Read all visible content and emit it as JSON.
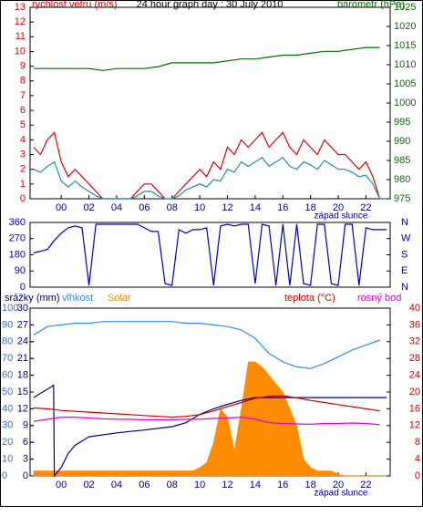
{
  "chart_data": [
    {
      "type": "line",
      "title": "24 hour graph day : 30 July 2010",
      "ylabel": "rychlost vetru (m/s)",
      "y2label": "barometr (hPa)",
      "annotation": "západ slunce",
      "xlim": [
        -2.25,
        23.75
      ],
      "xticks": [
        {
          "value": 0,
          "label": "00"
        },
        {
          "value": 2,
          "label": "02"
        },
        {
          "value": 4,
          "label": "04"
        },
        {
          "value": 6,
          "label": "06"
        },
        {
          "value": 8,
          "label": "08"
        },
        10,
        12,
        14,
        16,
        18,
        20,
        22
      ],
      "ylim": [
        0,
        13
      ],
      "yticks": [
        0,
        1,
        2,
        3,
        4,
        5,
        6,
        7,
        8,
        9,
        10,
        11,
        12,
        13
      ],
      "ycolor": "#e00000",
      "y2lim": [
        975,
        1025
      ],
      "y2ticks": [
        975,
        980,
        985,
        990,
        995,
        1000,
        1005,
        1010,
        1015,
        1020,
        1025
      ],
      "y2color": "#007000",
      "grid": false,
      "series": [
        {
          "color": "#e00000",
          "x": [
            -2,
            -1.5,
            -1,
            -0.5,
            0,
            0.5,
            1,
            1.5,
            2,
            2.5,
            3,
            3.5,
            4,
            4.5,
            5,
            5.5,
            6,
            6.5,
            7,
            7.5,
            8,
            8.5,
            9,
            9.5,
            10,
            10.5,
            11,
            11.5,
            12,
            12.5,
            13,
            13.5,
            14,
            14.5,
            15,
            15.5,
            16,
            16.5,
            17,
            17.5,
            18,
            18.5,
            19,
            19.5,
            20,
            20.5,
            21,
            21.5,
            22,
            22.5,
            23,
            23.5
          ],
          "values": [
            3.5,
            3,
            4,
            4.5,
            2.5,
            1.5,
            2,
            1.5,
            1,
            0.5,
            0,
            0,
            0,
            0,
            0,
            0.5,
            1,
            1,
            0.5,
            0,
            0,
            0.5,
            1,
            1.5,
            2,
            1.5,
            2.5,
            2,
            3.5,
            3,
            4,
            3.5,
            4,
            4.5,
            3.5,
            4,
            4.5,
            3.5,
            3,
            4,
            3.5,
            3,
            4,
            3.5,
            3,
            3,
            2.5,
            2,
            2.5,
            1.5,
            0,
            0
          ]
        },
        {
          "color": "#1a8fb0",
          "x": [
            -2,
            -1.5,
            -1,
            -0.5,
            0,
            0.5,
            1,
            1.5,
            2,
            2.5,
            3,
            3.5,
            4,
            4.5,
            5,
            5.5,
            6,
            6.5,
            7,
            7.5,
            8,
            8.5,
            9,
            9.5,
            10,
            10.5,
            11,
            11.5,
            12,
            12.5,
            13,
            13.5,
            14,
            14.5,
            15,
            15.5,
            16,
            16.5,
            17,
            17.5,
            18,
            18.5,
            19,
            19.5,
            20,
            20.5,
            21,
            21.5,
            22,
            22.5,
            23,
            23.5
          ],
          "values": [
            2,
            1.8,
            2.2,
            2.5,
            1.2,
            0.8,
            1.2,
            0.8,
            0.5,
            0.2,
            0,
            0,
            0,
            0,
            0,
            0.2,
            0.5,
            0.5,
            0.2,
            0,
            0,
            0.2,
            0.6,
            0.8,
            1,
            0.8,
            1.3,
            1.2,
            2,
            1.8,
            2.5,
            2.2,
            2.5,
            2.8,
            2.2,
            2.5,
            2.8,
            2.2,
            2,
            2.5,
            2.3,
            2,
            2.6,
            2.3,
            2,
            2,
            1.8,
            1.5,
            1.6,
            1,
            0,
            0
          ]
        },
        {
          "color": "#007000",
          "axis": "y2",
          "x": [
            -2,
            -1,
            0,
            1,
            2,
            3,
            4,
            5,
            6,
            7,
            8,
            9,
            10,
            11,
            12,
            13,
            14,
            15,
            16,
            17,
            18,
            19,
            20,
            21,
            22,
            23
          ],
          "values": [
            1009,
            1009,
            1009,
            1009,
            1009,
            1008.5,
            1009,
            1009,
            1009,
            1009.5,
            1010.5,
            1010.5,
            1010.5,
            1010.5,
            1011,
            1011.5,
            1011.5,
            1012,
            1012.5,
            1012.5,
            1013,
            1013.5,
            1013.5,
            1014,
            1014.5,
            1014.5
          ]
        }
      ]
    },
    {
      "type": "line",
      "xlim": [
        -2.25,
        23.75
      ],
      "ylim": [
        0,
        360
      ],
      "yticks": [
        0,
        90,
        180,
        270,
        360
      ],
      "ycolor": "#0000c0",
      "y2lim": [
        0,
        360
      ],
      "y2ticks": [
        {
          "value": 0,
          "label": "N"
        },
        {
          "value": 90,
          "label": "E"
        },
        {
          "value": 180,
          "label": "S"
        },
        {
          "value": 270,
          "label": "W"
        },
        {
          "value": 360,
          "label": "N"
        }
      ],
      "y2color": "#0000c0",
      "grid": false,
      "series": [
        {
          "color": "#0000c0",
          "x": [
            -2,
            -1.5,
            -1,
            -0.5,
            0,
            0.5,
            1,
            1.5,
            2,
            2.5,
            3,
            3.5,
            4,
            4.5,
            5,
            5.5,
            6,
            6.5,
            7,
            7.5,
            8,
            8.5,
            9,
            9.5,
            10,
            10.5,
            11,
            11.5,
            12,
            12.5,
            13,
            13.5,
            14,
            14.5,
            15,
            15.5,
            16,
            16.5,
            17,
            17.5,
            18,
            18.5,
            19,
            19.5,
            20,
            20.5,
            21,
            21.5,
            22,
            22.5,
            23,
            23.5
          ],
          "values": [
            190,
            200,
            210,
            260,
            300,
            330,
            340,
            330,
            10,
            350,
            350,
            350,
            350,
            350,
            350,
            350,
            330,
            310,
            310,
            20,
            10,
            320,
            300,
            320,
            320,
            330,
            10,
            340,
            350,
            340,
            350,
            350,
            20,
            350,
            340,
            10,
            350,
            10,
            350,
            20,
            10,
            350,
            350,
            20,
            10,
            350,
            350,
            10,
            330,
            320,
            320,
            320
          ]
        }
      ]
    },
    {
      "type": "line",
      "annotation": "západ slunce",
      "xlim": [
        -2.25,
        23.75
      ],
      "xticks": [
        {
          "value": 0,
          "label": "00"
        },
        {
          "value": 2,
          "label": "02"
        },
        {
          "value": 4,
          "label": "04"
        },
        {
          "value": 6,
          "label": "06"
        },
        {
          "value": 8,
          "label": "08"
        },
        10,
        12,
        14,
        16,
        18,
        20,
        22
      ],
      "ylim": [
        0,
        100
      ],
      "yticks": [
        0,
        10,
        20,
        30,
        40,
        50,
        60,
        70,
        80,
        90,
        100
      ],
      "ycolor": "#3070d0",
      "y3lim": [
        0,
        30
      ],
      "y3ticks": [
        0,
        3,
        6,
        9,
        12,
        15,
        18,
        21,
        24,
        27,
        30
      ],
      "y3color": "#000080",
      "y2lim": [
        0,
        40
      ],
      "y2ticks": [
        0,
        4,
        8,
        12,
        16,
        20,
        24,
        28,
        32,
        36,
        40
      ],
      "y2color": "#d00000",
      "grid": false,
      "series": [
        {
          "name": "srážky (mm)",
          "color": "#000080",
          "axis": "y3",
          "x": [
            -2,
            -1,
            -0.55,
            -0.5,
            0,
            0.5,
            1,
            2,
            4,
            6,
            8,
            9,
            10,
            11,
            12,
            13,
            14,
            16,
            20,
            23.5
          ],
          "values": [
            14,
            15.5,
            16.2,
            0,
            1.5,
            4,
            5.5,
            7,
            7.7,
            8.2,
            8.8,
            9.5,
            11,
            12,
            12.8,
            13.5,
            14,
            14,
            14,
            14
          ]
        },
        {
          "name": "vlhkost",
          "color": "#3090e0",
          "x": [
            -2,
            -1,
            0,
            1,
            2,
            3,
            4,
            5,
            6,
            7,
            8,
            9,
            10,
            11,
            12,
            13,
            14,
            15,
            16,
            17,
            18,
            19,
            20,
            21,
            22,
            23
          ],
          "values": [
            84,
            89,
            90,
            91,
            91,
            92,
            92,
            92,
            92,
            92,
            92,
            91,
            91,
            90,
            89,
            87,
            82,
            73,
            68,
            65,
            64,
            67,
            71,
            75,
            78,
            81
          ]
        },
        {
          "name": "Solar",
          "color": "#ff8c00",
          "kind": "area",
          "x": [
            -2,
            -1.5,
            -1,
            -0.5,
            0,
            0.5,
            1,
            1.5,
            2,
            2.5,
            3,
            3.5,
            4,
            4.5,
            5,
            5.5,
            6,
            6.5,
            7,
            7.5,
            8,
            8.5,
            9,
            9.5,
            10,
            10.5,
            11,
            11.5,
            12,
            12.5,
            13,
            13.5,
            14,
            14.5,
            15,
            15.5,
            16,
            16.5,
            17,
            17.5,
            18,
            18.5,
            19,
            19.5,
            20,
            20.5,
            21,
            21.5,
            22,
            22.5,
            23,
            23.5
          ],
          "values": [
            3,
            3,
            3,
            3,
            3,
            3,
            3,
            3,
            3,
            3,
            3,
            3,
            3,
            3,
            3,
            3,
            3,
            3,
            3,
            3,
            3,
            3,
            3,
            3,
            5,
            8,
            20,
            40,
            35,
            15,
            40,
            68,
            68,
            65,
            60,
            55,
            50,
            40,
            30,
            10,
            5,
            3,
            3,
            3,
            1,
            0,
            0,
            0,
            0,
            0,
            0,
            0
          ]
        },
        {
          "name": "teplota (°C)",
          "color": "#d00000",
          "axis": "y2",
          "x": [
            -2,
            -1,
            0,
            1,
            2,
            3,
            4,
            5,
            6,
            7,
            8,
            9,
            10,
            11,
            12,
            13,
            14,
            15,
            16,
            17,
            18,
            19,
            20,
            21,
            22,
            23
          ],
          "values": [
            16.2,
            16,
            15.6,
            15.4,
            15.2,
            15,
            14.8,
            14.6,
            14.4,
            14.2,
            14,
            14.2,
            14.6,
            15.5,
            16.5,
            17.5,
            18.5,
            19,
            19.1,
            18.6,
            18,
            17.5,
            17,
            16.5,
            16,
            15.5
          ]
        },
        {
          "name": "rosný bod",
          "color": "#e000e0",
          "axis": "y2",
          "x": [
            -2,
            -1,
            0,
            1,
            2,
            3,
            4,
            5,
            6,
            7,
            8,
            9,
            10,
            11,
            12,
            13,
            14,
            15,
            16,
            17,
            18,
            19,
            20,
            21,
            22,
            23
          ],
          "values": [
            13,
            13.5,
            14,
            14,
            13.8,
            13.6,
            13.5,
            13.5,
            13.4,
            13.4,
            13.4,
            13.5,
            13.5,
            13.7,
            13.8,
            14,
            13.5,
            12.7,
            12.5,
            12.4,
            12.3,
            12.5,
            12.5,
            12.6,
            12.5,
            12.2
          ]
        }
      ]
    }
  ]
}
